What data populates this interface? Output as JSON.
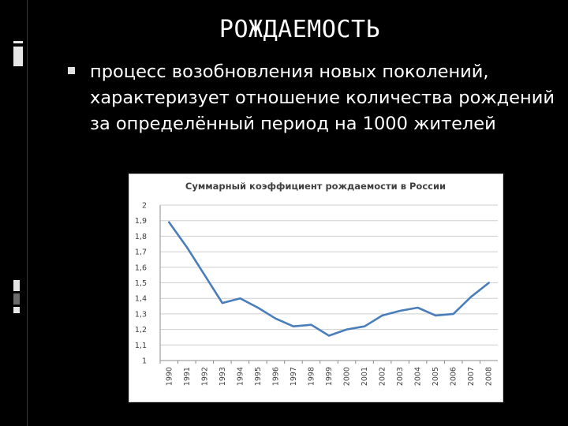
{
  "slide": {
    "title": "РОЖДАЕМОСТЬ",
    "bullet_text": "процесс возобновления новых поколений, характеризует отношение количества рождений за определённый период на 1000 жителей",
    "bullet_icon": "square-bullet-icon",
    "colors": {
      "background": "#000000",
      "text": "#ffffff",
      "line": "#4a7ebb"
    }
  },
  "chart_data": {
    "type": "line",
    "title": "Суммарный коэффициент рождаемости в России",
    "xlabel": "",
    "ylabel": "",
    "categories": [
      "1990",
      "1991",
      "1992",
      "1993",
      "1994",
      "1995",
      "1996",
      "1997",
      "1998",
      "1999",
      "2000",
      "2001",
      "2002",
      "2003",
      "2004",
      "2005",
      "2006",
      "2007",
      "2008"
    ],
    "series": [
      {
        "values": [
          1.89,
          1.73,
          1.55,
          1.37,
          1.4,
          1.34,
          1.27,
          1.22,
          1.23,
          1.16,
          1.2,
          1.22,
          1.29,
          1.32,
          1.34,
          1.29,
          1.3,
          1.41,
          1.5
        ]
      }
    ],
    "ylim": [
      1,
      2
    ],
    "yticks": [
      "1",
      "1,1",
      "1,2",
      "1,3",
      "1,4",
      "1,5",
      "1,6",
      "1,7",
      "1,8",
      "1,9",
      "2"
    ],
    "grid": true,
    "legend": "none"
  }
}
